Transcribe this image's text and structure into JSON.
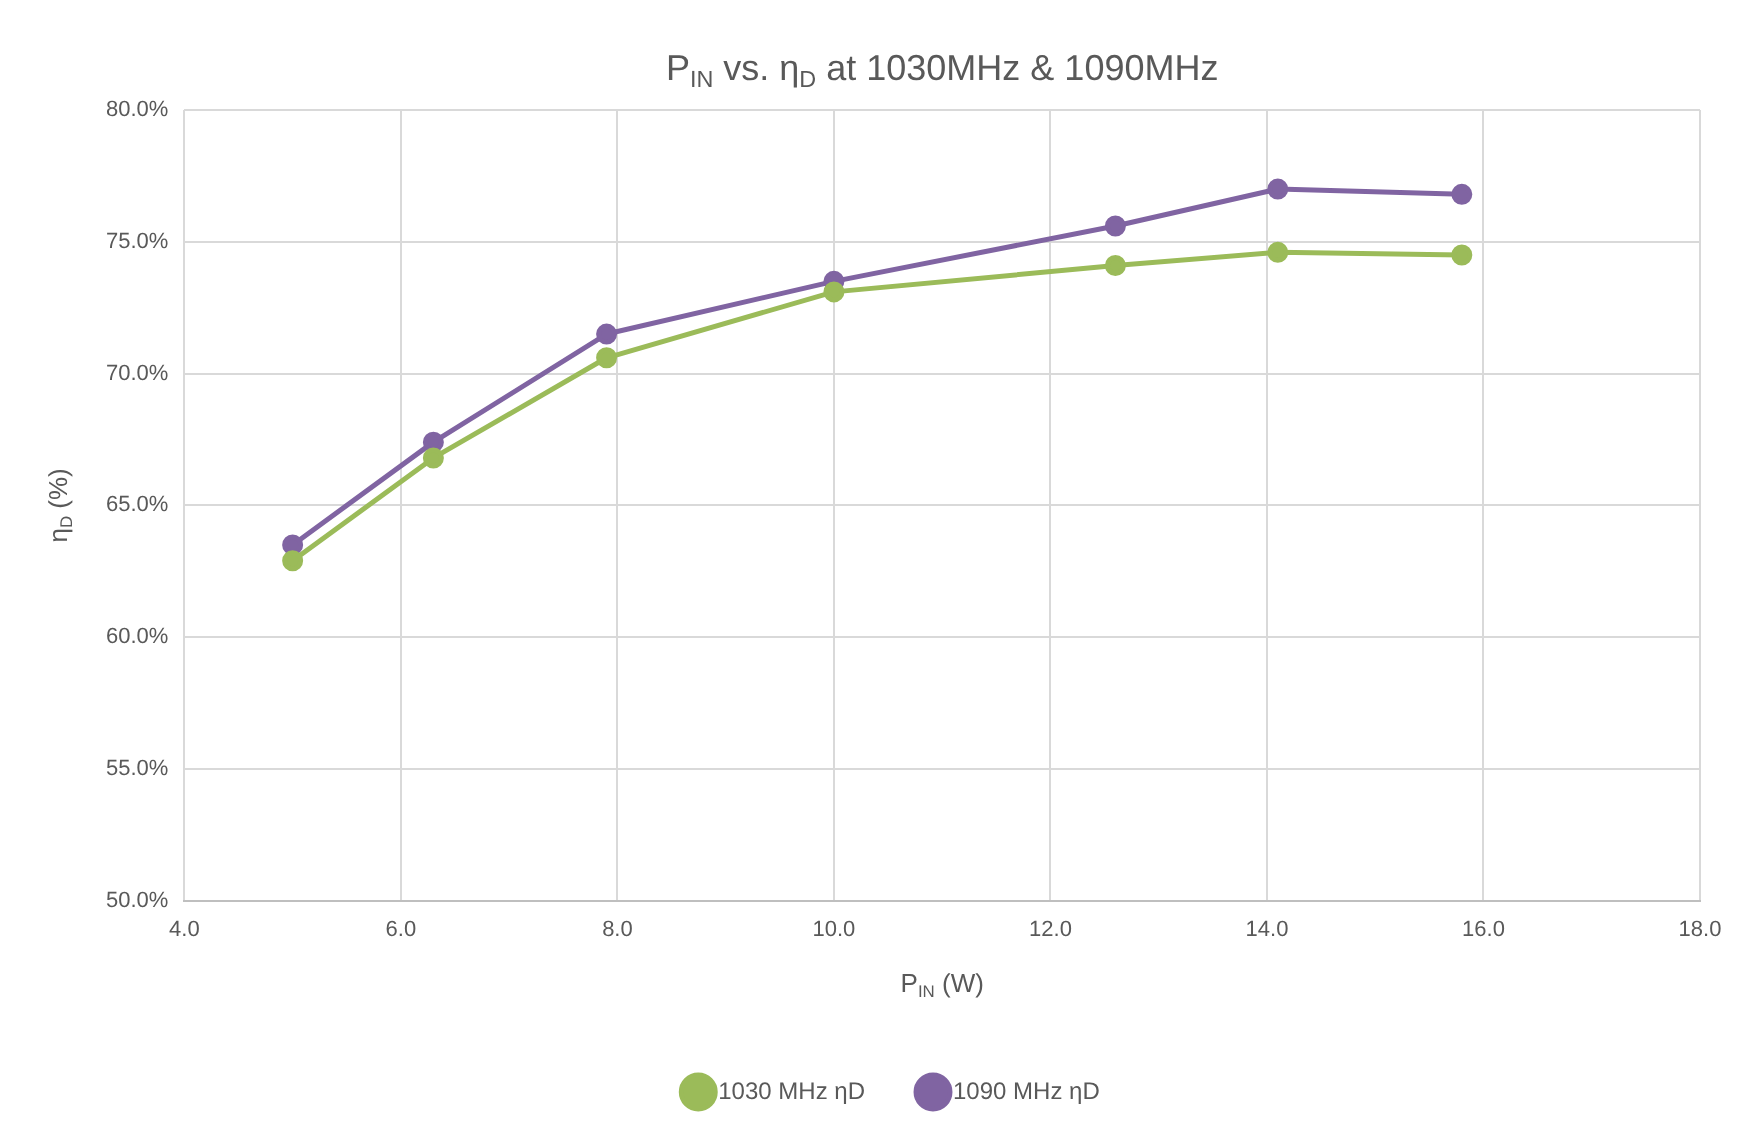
{
  "chart_data": {
    "type": "line",
    "title": "P$_{IN}$ vs. η$_{D}$ at 1030MHz & 1090MHz",
    "xlabel": "P$_{IN}$ (W)",
    "ylabel": "η$_{D}$ (%)",
    "x": [
      5.0,
      6.3,
      7.9,
      10.0,
      12.6,
      14.1,
      15.8
    ],
    "series": [
      {
        "name": "1030 MHz ηD",
        "color": "#9bbb59",
        "values": [
          62.9,
          66.8,
          70.6,
          73.1,
          74.1,
          74.6,
          74.5
        ]
      },
      {
        "name": "1090 MHz ηD",
        "color": "#8064a2",
        "values": [
          63.5,
          67.4,
          71.5,
          73.5,
          75.6,
          77.0,
          76.8
        ]
      }
    ],
    "xlim": [
      4,
      18
    ],
    "xticks": [
      {
        "value": 4,
        "label": "4.0"
      },
      {
        "value": 6,
        "label": "6.0"
      },
      {
        "value": 8,
        "label": "8.0"
      },
      {
        "value": 10,
        "label": "10.0"
      },
      {
        "value": 12,
        "label": "12.0"
      },
      {
        "value": 14,
        "label": "14.0"
      },
      {
        "value": 16,
        "label": "16.0"
      },
      {
        "value": 18,
        "label": "18.0"
      }
    ],
    "ylim": [
      50,
      80
    ],
    "yticks": [
      {
        "value": 50,
        "label": "50.0%"
      },
      {
        "value": 55,
        "label": "55.0%"
      },
      {
        "value": 60,
        "label": "60.0%"
      },
      {
        "value": 65,
        "label": "65.0%"
      },
      {
        "value": 70,
        "label": "70.0%"
      },
      {
        "value": 75,
        "label": "75.0%"
      },
      {
        "value": 80,
        "label": "80.0%"
      }
    ],
    "grid": true,
    "legend": "bottom",
    "marker": "circle",
    "line_style": "solid"
  }
}
